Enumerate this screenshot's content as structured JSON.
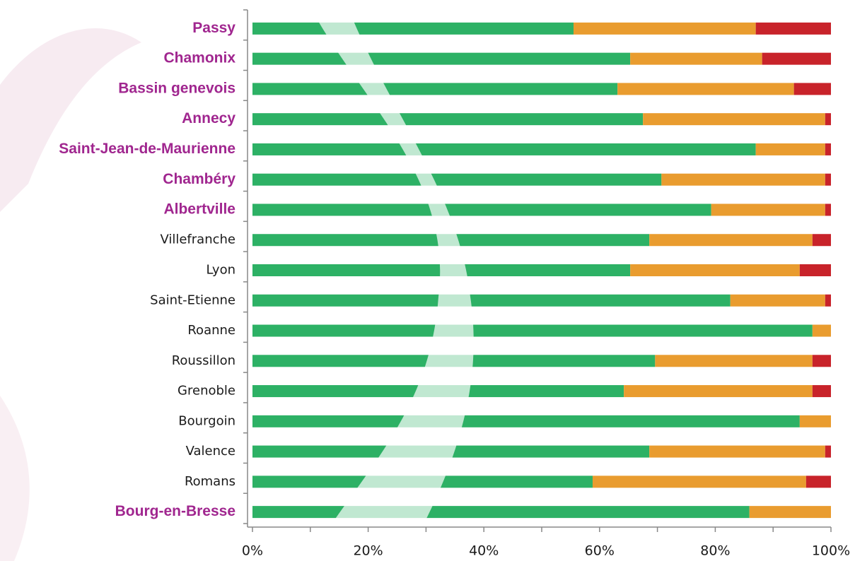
{
  "chart_data": {
    "type": "stacked-barh",
    "categories": [
      "Passy",
      "Chamonix",
      "Bassin genevois",
      "Annecy",
      "Saint-Jean-de-Maurienne",
      "Chambéry",
      "Albertville",
      "Villefranche",
      "Lyon",
      "Saint-Etienne",
      "Roanne",
      "Roussillon",
      "Grenoble",
      "Bourgoin",
      "Valence",
      "Romans",
      "Bourg-en-Bresse"
    ],
    "category_colors": [
      "#a0268f",
      "#a0268f",
      "#a0268f",
      "#a0268f",
      "#a0268f",
      "#a0268f",
      "#a0268f",
      "#1a1a1a",
      "#1a1a1a",
      "#1a1a1a",
      "#1a1a1a",
      "#1a1a1a",
      "#1a1a1a",
      "#1a1a1a",
      "#1a1a1a",
      "#1a1a1a",
      "#a0268f"
    ],
    "category_bold": [
      true,
      true,
      true,
      true,
      true,
      true,
      true,
      false,
      false,
      false,
      false,
      false,
      false,
      false,
      false,
      false,
      true
    ],
    "series": [
      {
        "color": "#2db165",
        "values": [
          55.5,
          65.3,
          63.1,
          67.5,
          87.0,
          70.7,
          79.3,
          68.6,
          65.3,
          82.6,
          96.8,
          69.6,
          64.2,
          94.6,
          68.6,
          58.8,
          85.9
        ]
      },
      {
        "color": "#e99c2f",
        "values": [
          31.5,
          22.8,
          30.5,
          31.5,
          12.0,
          28.3,
          19.7,
          28.2,
          29.3,
          16.4,
          3.2,
          27.2,
          32.6,
          5.4,
          30.4,
          36.9,
          14.1
        ]
      },
      {
        "color": "#c8232a",
        "values": [
          13.0,
          11.9,
          6.4,
          1.0,
          1.0,
          1.0,
          1.0,
          3.2,
          5.4,
          1.0,
          0,
          3.2,
          3.2,
          0,
          1.0,
          4.3,
          0
        ]
      }
    ],
    "xlim": [
      0,
      100
    ],
    "xticks": [
      {
        "value": 0,
        "label": "0%"
      },
      {
        "value": 20,
        "label": "20%"
      },
      {
        "value": 40,
        "label": "40%"
      },
      {
        "value": 60,
        "label": "60%"
      },
      {
        "value": 80,
        "label": "80%"
      },
      {
        "value": 100,
        "label": "100%"
      }
    ],
    "xminor_ticks": [
      10,
      30,
      50,
      70,
      90
    ]
  }
}
